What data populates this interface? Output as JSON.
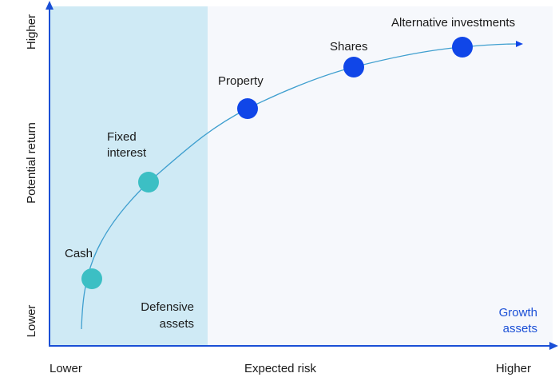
{
  "axes": {
    "x_title": "Expected risk",
    "x_low": "Lower",
    "x_high": "Higher",
    "y_title": "Potential return",
    "y_low": "Lower",
    "y_high": "Higher"
  },
  "regions": {
    "defensive": {
      "label_line1": "Defensive",
      "label_line2": "assets"
    },
    "growth": {
      "label_line1": "Growth",
      "label_line2": "assets"
    }
  },
  "assets": [
    {
      "label": "Cash",
      "category": "defensive"
    },
    {
      "label_line1": "Fixed",
      "label_line2": "interest",
      "category": "defensive"
    },
    {
      "label": "Property",
      "category": "growth"
    },
    {
      "label": "Shares",
      "category": "growth"
    },
    {
      "label": "Alternative investments",
      "category": "growth"
    }
  ],
  "colors": {
    "axis": "#1a4fd6",
    "defensive_band": "#cfeaf5",
    "growth_band": "#f6f8fc",
    "defensive_dot": "#3cbfc4",
    "growth_dot": "#1046e8",
    "curve": "#3f9fcf",
    "text": "#1a1a1a",
    "growth_label": "#1a4fd6"
  }
}
